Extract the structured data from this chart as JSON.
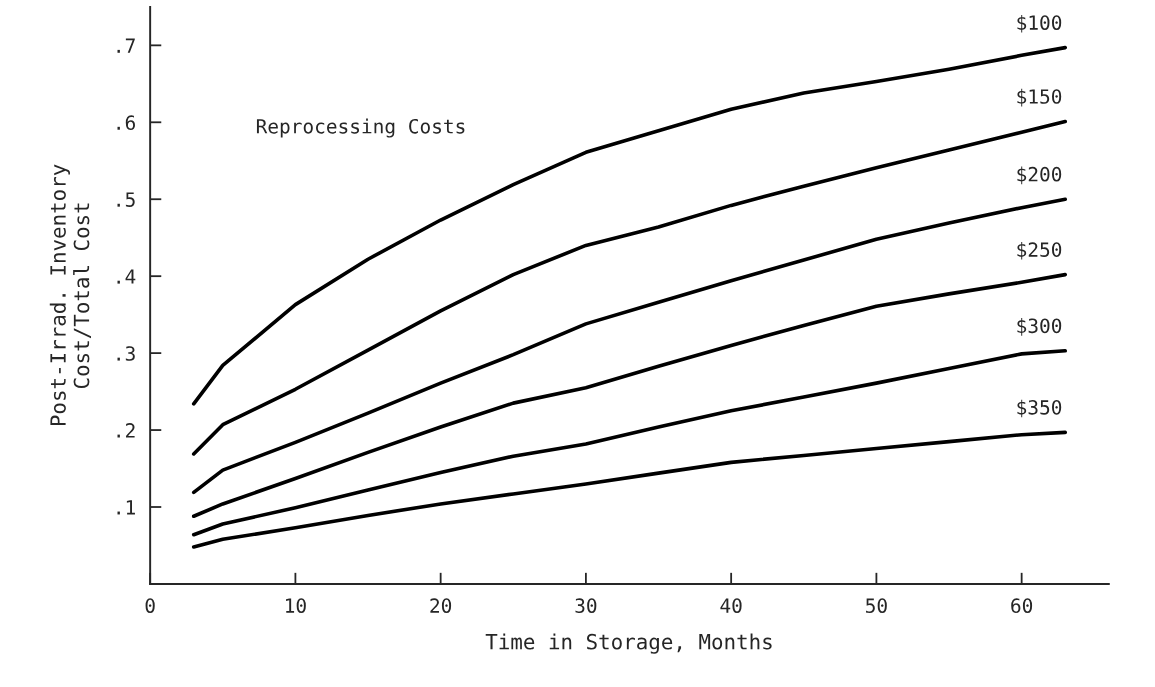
{
  "chart_data": {
    "type": "line",
    "xlabel": "Time in Storage, Months",
    "ylabel": "Post-Irrad. Inventory\nCost/Total Cost",
    "annotations": [
      "Reprocessing Costs"
    ],
    "x": [
      3,
      5,
      10,
      15,
      20,
      25,
      30,
      35,
      40,
      45,
      50,
      55,
      60,
      63
    ],
    "series": [
      {
        "name": "$100",
        "color": "#000000",
        "values": [
          0.234,
          0.284,
          0.363,
          0.422,
          0.473,
          0.519,
          0.561,
          0.589,
          0.617,
          0.638,
          0.653,
          0.669,
          0.687,
          0.697
        ]
      },
      {
        "name": "$150",
        "color": "#000000",
        "values": [
          0.169,
          0.207,
          0.253,
          0.304,
          0.355,
          0.402,
          0.44,
          0.464,
          0.492,
          0.517,
          0.541,
          0.564,
          0.587,
          0.601
        ]
      },
      {
        "name": "$200",
        "color": "#000000",
        "values": [
          0.119,
          0.148,
          0.184,
          0.222,
          0.261,
          0.298,
          0.338,
          0.366,
          0.394,
          0.421,
          0.448,
          0.469,
          0.489,
          0.5
        ]
      },
      {
        "name": "$250",
        "color": "#000000",
        "values": [
          0.088,
          0.104,
          0.137,
          0.171,
          0.204,
          0.235,
          0.255,
          0.283,
          0.31,
          0.336,
          0.361,
          0.377,
          0.392,
          0.402
        ]
      },
      {
        "name": "$300",
        "color": "#000000",
        "values": [
          0.064,
          0.078,
          0.099,
          0.122,
          0.145,
          0.166,
          0.182,
          0.204,
          0.225,
          0.243,
          0.261,
          0.28,
          0.299,
          0.303
        ]
      },
      {
        "name": "$350",
        "color": "#000000",
        "values": [
          0.048,
          0.058,
          0.073,
          0.089,
          0.104,
          0.117,
          0.13,
          0.144,
          0.158,
          0.167,
          0.176,
          0.185,
          0.194,
          0.197
        ]
      }
    ],
    "xlim": [
      0,
      66
    ],
    "ylim": [
      0,
      0.75
    ],
    "xticks": [
      0,
      10,
      20,
      30,
      40,
      50,
      60
    ],
    "yticks": [
      {
        "value": 0.1,
        "label": ".1"
      },
      {
        "value": 0.2,
        "label": ".2"
      },
      {
        "value": 0.3,
        "label": ".3"
      },
      {
        "value": 0.4,
        "label": ".4"
      },
      {
        "value": 0.5,
        "label": ".5"
      },
      {
        "value": 0.6,
        "label": ".6"
      },
      {
        "value": 0.7,
        "label": ".7"
      }
    ],
    "grid": false,
    "legend": false,
    "marker": "none",
    "line_style": "solid"
  }
}
